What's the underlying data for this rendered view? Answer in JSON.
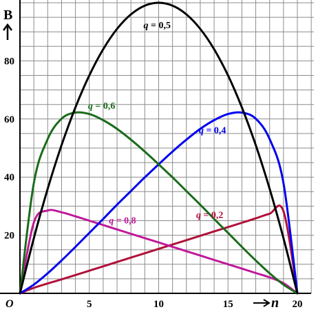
{
  "chart_data": {
    "type": "line",
    "title": "",
    "ylabel": "B",
    "xlabel": "n",
    "origin_label": "O",
    "xlim": [
      0,
      20
    ],
    "ylim": [
      0,
      100
    ],
    "x_ticks": [
      {
        "value": 5,
        "label": "5"
      },
      {
        "value": 10,
        "label": "10"
      },
      {
        "value": 15,
        "label": "15"
      },
      {
        "value": 20,
        "label": "20"
      }
    ],
    "y_ticks": [
      {
        "value": 20,
        "label": "20"
      },
      {
        "value": 40,
        "label": "40"
      },
      {
        "value": 60,
        "label": "60"
      },
      {
        "value": 80,
        "label": "80"
      }
    ],
    "grid": true,
    "x": [
      0,
      1,
      2,
      3,
      4,
      5,
      6,
      7,
      8,
      9,
      10,
      11,
      12,
      13,
      14,
      15,
      16,
      17,
      18,
      19,
      20
    ],
    "series": [
      {
        "name": "q = 0,5",
        "color": "#000000",
        "values": [
          0,
          19,
          36,
          51,
          64,
          75,
          84,
          91,
          96,
          99,
          100,
          99,
          96,
          91,
          84,
          75,
          64,
          51,
          36,
          19,
          0
        ]
      },
      {
        "name": "q = 0,6",
        "color": "#1a6b1a",
        "values": [
          0,
          38,
          53.1,
          60.1,
          62.2,
          61.7,
          59.6,
          56.6,
          52.9,
          48.8,
          44.4,
          39.9,
          35.2,
          30.5,
          25.6,
          20.8,
          16.0,
          11.3,
          6.9,
          3.0,
          0
        ]
      },
      {
        "name": "q = 0,4",
        "color": "#0000ee",
        "values": [
          0,
          3.0,
          6.9,
          11.3,
          16.0,
          20.8,
          25.6,
          30.5,
          35.2,
          39.9,
          44.4,
          48.8,
          52.9,
          56.6,
          59.6,
          61.7,
          62.2,
          60.1,
          53.1,
          38.0,
          0
        ]
      },
      {
        "name": "q = 0,8",
        "color": "#c0189a",
        "values": [
          0,
          24.4,
          28.5,
          27.9,
          26.5,
          25.0,
          23.5,
          22.0,
          20.5,
          19.0,
          17.5,
          16.0,
          14.5,
          13.0,
          11.5,
          10.0,
          8.5,
          7.0,
          5.5,
          3.5,
          0
        ]
      },
      {
        "name": "q = 0,2",
        "color": "#b0103a",
        "values": [
          0,
          1.9,
          3.4,
          4.8,
          6.3,
          7.8,
          9.3,
          10.8,
          12.3,
          13.8,
          15.3,
          16.8,
          18.3,
          19.8,
          21.3,
          22.8,
          24.3,
          25.8,
          27.4,
          28.3,
          0
        ]
      }
    ]
  }
}
